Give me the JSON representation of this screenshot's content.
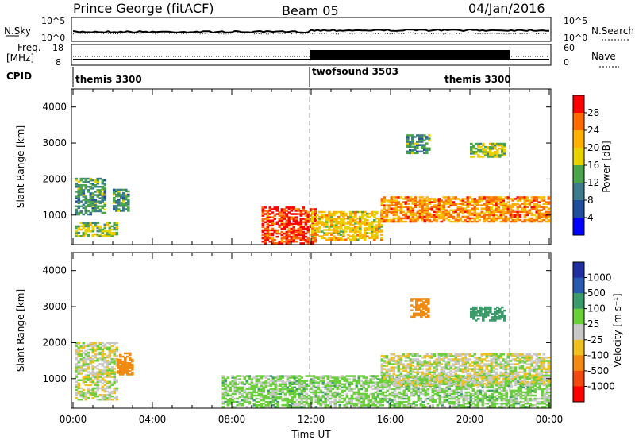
{
  "header": {
    "station": "Prince George (fitACF)",
    "beam": "Beam 05",
    "date": "04/Jan/2016"
  },
  "noise_panel": {
    "left_label": "N.Sky",
    "right_label": "N.Search",
    "left_ticks": [
      "10^5",
      "10^0"
    ],
    "right_ticks": [
      "10^5",
      "10^0"
    ]
  },
  "freq_panel": {
    "left_label_1": "Freq.",
    "left_label_2": "[MHz]",
    "right_label": "Nave",
    "left_ticks": [
      "18",
      "8"
    ],
    "right_ticks": [
      "60",
      "0"
    ]
  },
  "cpid": {
    "label": "CPID",
    "segments": [
      "themis 3300",
      "twofsound 3503",
      "themis 3300"
    ]
  },
  "chart_data": [
    {
      "type": "heatmap",
      "title": "Power",
      "xlabel": "",
      "ylabel": "Slant Range [km]",
      "colorbar_label": "Power [dB]",
      "colorbar_ticks": [
        "28",
        "24",
        "20",
        "16",
        "12",
        "8",
        "4"
      ],
      "colorbar_colors": [
        "#ff0000",
        "#ff6a00",
        "#ffb000",
        "#e8d200",
        "#4aa54a",
        "#3d7a8c",
        "#1f4e9a",
        "#0000ff"
      ],
      "ylim": [
        180,
        4500
      ],
      "yticks": [
        "4000",
        "3000",
        "2000",
        "1000"
      ],
      "xlim": [
        "00:00",
        "24:00"
      ],
      "regions": [
        {
          "t0": 0.1,
          "t1": 1.6,
          "r0": 1000,
          "r1": 2000,
          "level": 12
        },
        {
          "t0": 0.1,
          "t1": 2.2,
          "r0": 400,
          "r1": 800,
          "level": 16
        },
        {
          "t0": 2.0,
          "t1": 2.8,
          "r0": 1100,
          "r1": 1700,
          "level": 12
        },
        {
          "t0": 9.5,
          "t1": 12.2,
          "r0": 200,
          "r1": 1200,
          "level": 28
        },
        {
          "t0": 12.0,
          "t1": 15.5,
          "r0": 300,
          "r1": 1100,
          "level": 20
        },
        {
          "t0": 15.5,
          "t1": 24.0,
          "r0": 800,
          "r1": 1500,
          "level": 24
        },
        {
          "t0": 16.8,
          "t1": 18.0,
          "r0": 2700,
          "r1": 3200,
          "level": 12
        },
        {
          "t0": 20.0,
          "t1": 21.8,
          "r0": 2600,
          "r1": 3000,
          "level": 16
        }
      ]
    },
    {
      "type": "heatmap",
      "title": "Velocity",
      "xlabel": "Time UT",
      "ylabel": "Slant Range [km]",
      "colorbar_label": "Velocity [m s⁻¹]",
      "colorbar_ticks": [
        "1000",
        "500",
        "100",
        "25",
        "-25",
        "-100",
        "-500",
        "-1000"
      ],
      "colorbar_colors": [
        "#2030a0",
        "#2a5ab0",
        "#3a9a6a",
        "#6ad03a",
        "#c8c8c8",
        "#f0c020",
        "#f08a10",
        "#f04a10",
        "#ff0000"
      ],
      "ylim": [
        180,
        4500
      ],
      "yticks": [
        "4000",
        "3000",
        "2000",
        "1000"
      ],
      "xlim": [
        "00:00",
        "24:00"
      ],
      "xticks": [
        "00:00",
        "04:00",
        "08:00",
        "12:00",
        "16:00",
        "20:00",
        "00:00"
      ],
      "regions": [
        {
          "t0": 0.1,
          "t1": 2.2,
          "r0": 400,
          "r1": 2000,
          "level": 0
        },
        {
          "t0": 2.2,
          "t1": 3.0,
          "r0": 1100,
          "r1": 1700,
          "level": -300
        },
        {
          "t0": 7.5,
          "t1": 24.0,
          "r0": 200,
          "r1": 1100,
          "level": 50
        },
        {
          "t0": 15.5,
          "t1": 24.0,
          "r0": 800,
          "r1": 1700,
          "level": 0
        },
        {
          "t0": 17.0,
          "t1": 17.9,
          "r0": 2700,
          "r1": 3200,
          "level": -200
        },
        {
          "t0": 20.0,
          "t1": 21.8,
          "r0": 2600,
          "r1": 3000,
          "level": 300
        }
      ]
    }
  ]
}
